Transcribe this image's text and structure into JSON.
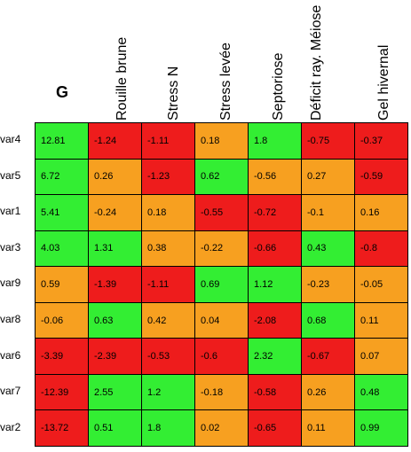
{
  "header": {
    "g": "G",
    "columns": [
      "Rouille brune",
      "Stress N",
      "Stress levée",
      "Septoriose",
      "Déficit ray. Méiose",
      "Gel hivernal"
    ]
  },
  "colors": {
    "green": "#33ee33",
    "orange": "#f7a020",
    "red": "#ee1c1c"
  },
  "rows": [
    {
      "label": "var4",
      "cells": [
        {
          "value": "12.81",
          "color": "green"
        },
        {
          "value": "-1.24",
          "color": "red"
        },
        {
          "value": "-1.11",
          "color": "red"
        },
        {
          "value": "0.18",
          "color": "orange"
        },
        {
          "value": "1.8",
          "color": "green"
        },
        {
          "value": "-0.75",
          "color": "red"
        },
        {
          "value": "-0.37",
          "color": "red"
        }
      ]
    },
    {
      "label": "var5",
      "cells": [
        {
          "value": "6.72",
          "color": "green"
        },
        {
          "value": "0.26",
          "color": "orange"
        },
        {
          "value": "-1.23",
          "color": "red"
        },
        {
          "value": "0.62",
          "color": "green"
        },
        {
          "value": "-0.56",
          "color": "orange"
        },
        {
          "value": "0.27",
          "color": "orange"
        },
        {
          "value": "-0.59",
          "color": "red"
        }
      ]
    },
    {
      "label": "var1",
      "cells": [
        {
          "value": "5.41",
          "color": "green"
        },
        {
          "value": "-0.24",
          "color": "orange"
        },
        {
          "value": "0.18",
          "color": "orange"
        },
        {
          "value": "-0.55",
          "color": "red"
        },
        {
          "value": "-0.72",
          "color": "red"
        },
        {
          "value": "-0.1",
          "color": "orange"
        },
        {
          "value": "0.16",
          "color": "orange"
        }
      ]
    },
    {
      "label": "var3",
      "cells": [
        {
          "value": "4.03",
          "color": "green"
        },
        {
          "value": "1.31",
          "color": "green"
        },
        {
          "value": "0.38",
          "color": "orange"
        },
        {
          "value": "-0.22",
          "color": "orange"
        },
        {
          "value": "-0.66",
          "color": "red"
        },
        {
          "value": "0.43",
          "color": "green"
        },
        {
          "value": "-0.8",
          "color": "red"
        }
      ]
    },
    {
      "label": "var9",
      "cells": [
        {
          "value": "0.59",
          "color": "orange"
        },
        {
          "value": "-1.39",
          "color": "red"
        },
        {
          "value": "-1.11",
          "color": "red"
        },
        {
          "value": "0.69",
          "color": "green"
        },
        {
          "value": "1.12",
          "color": "green"
        },
        {
          "value": "-0.23",
          "color": "orange"
        },
        {
          "value": "-0.05",
          "color": "orange"
        }
      ]
    },
    {
      "label": "var8",
      "cells": [
        {
          "value": "-0.06",
          "color": "orange"
        },
        {
          "value": "0.63",
          "color": "green"
        },
        {
          "value": "0.42",
          "color": "orange"
        },
        {
          "value": "0.04",
          "color": "orange"
        },
        {
          "value": "-2.08",
          "color": "red"
        },
        {
          "value": "0.68",
          "color": "green"
        },
        {
          "value": "0.11",
          "color": "orange"
        }
      ]
    },
    {
      "label": "var6",
      "cells": [
        {
          "value": "-3.39",
          "color": "red"
        },
        {
          "value": "-2.39",
          "color": "red"
        },
        {
          "value": "-0.53",
          "color": "red"
        },
        {
          "value": "-0.6",
          "color": "red"
        },
        {
          "value": "2.32",
          "color": "green"
        },
        {
          "value": "-0.67",
          "color": "red"
        },
        {
          "value": "0.07",
          "color": "orange"
        }
      ]
    },
    {
      "label": "var7",
      "cells": [
        {
          "value": "-12.39",
          "color": "red"
        },
        {
          "value": "2.55",
          "color": "green"
        },
        {
          "value": "1.2",
          "color": "green"
        },
        {
          "value": "-0.18",
          "color": "orange"
        },
        {
          "value": "-0.58",
          "color": "red"
        },
        {
          "value": "0.26",
          "color": "orange"
        },
        {
          "value": "0.48",
          "color": "green"
        }
      ]
    },
    {
      "label": "var2",
      "cells": [
        {
          "value": "-13.72",
          "color": "red"
        },
        {
          "value": "0.51",
          "color": "green"
        },
        {
          "value": "1.8",
          "color": "green"
        },
        {
          "value": "0.02",
          "color": "orange"
        },
        {
          "value": "-0.65",
          "color": "red"
        },
        {
          "value": "0.11",
          "color": "orange"
        },
        {
          "value": "0.99",
          "color": "green"
        }
      ]
    }
  ]
}
